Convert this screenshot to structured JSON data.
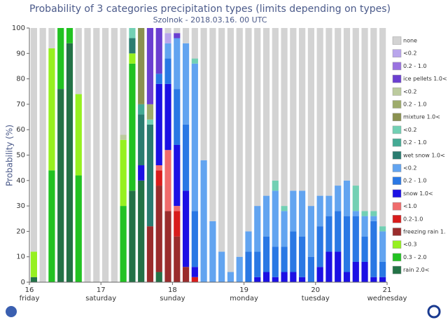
{
  "chart_data": {
    "type": "stacked_bar",
    "title": "Probability of 3 categories precipitation types (limits depending on types)",
    "subtitle": "Szolnok - 2018.03.16. 00 UTC",
    "y_label": "Probability (%)",
    "ylim": [
      0,
      100
    ],
    "yticks": [
      0,
      10,
      20,
      30,
      40,
      50,
      60,
      70,
      80,
      90,
      100
    ],
    "xlim": [
      16,
      21
    ],
    "xticks": [
      16,
      17,
      18,
      19,
      20,
      21
    ],
    "x_tick_weekdays": [
      "friday",
      "saturday",
      "sunday",
      "monday",
      "tuesday",
      "wednesday"
    ],
    "x": [
      16.0625,
      16.1875,
      16.3125,
      16.4375,
      16.5625,
      16.6875,
      16.8125,
      16.9375,
      17.0625,
      17.1875,
      17.3125,
      17.4375,
      17.5625,
      17.6875,
      17.8125,
      17.9375,
      18.0625,
      18.1875,
      18.3125,
      18.4375,
      18.5625,
      18.6875,
      18.8125,
      18.9375,
      19.0625,
      19.1875,
      19.3125,
      19.4375,
      19.5625,
      19.6875,
      19.8125,
      19.9375,
      20.0625,
      20.1875,
      20.3125,
      20.4375,
      20.5625,
      20.6875,
      20.8125,
      20.9375
    ],
    "series": [
      {
        "name": "none",
        "color": "#d3d3d3",
        "values": [
          88,
          100,
          8,
          0,
          0,
          26,
          100,
          100,
          100,
          100,
          42,
          0,
          0,
          0,
          0,
          2,
          2,
          6,
          12,
          52,
          76,
          88,
          96,
          90,
          80,
          70,
          66,
          60,
          70,
          64,
          64,
          70,
          66,
          66,
          62,
          60,
          62,
          72,
          72,
          78
        ]
      },
      {
        "name": "<0.2",
        "color": "#b9a6ec",
        "values": [
          0,
          0,
          0,
          0,
          0,
          0,
          0,
          0,
          0,
          0,
          0,
          0,
          0,
          0,
          0,
          4,
          0,
          0,
          0,
          0,
          0,
          0,
          0,
          0,
          0,
          0,
          0,
          0,
          0,
          0,
          0,
          0,
          0,
          0,
          0,
          0,
          0,
          0,
          0,
          0
        ]
      },
      {
        "name": "0.2 - 1.0",
        "color": "#9a72e0",
        "values": [
          0,
          0,
          0,
          0,
          0,
          0,
          0,
          0,
          0,
          0,
          0,
          0,
          0,
          0,
          0,
          0,
          0,
          0,
          0,
          0,
          0,
          0,
          0,
          0,
          0,
          0,
          0,
          0,
          0,
          0,
          0,
          0,
          0,
          0,
          0,
          0,
          0,
          0,
          0,
          0
        ]
      },
      {
        "name": "ice pellets 1.0<",
        "color": "#6b3fd0",
        "values": [
          0,
          0,
          0,
          0,
          0,
          0,
          0,
          0,
          0,
          0,
          0,
          0,
          0,
          30,
          18,
          0,
          2,
          0,
          0,
          0,
          0,
          0,
          0,
          0,
          0,
          0,
          0,
          0,
          0,
          0,
          0,
          0,
          0,
          0,
          0,
          0,
          0,
          0,
          0,
          0
        ]
      },
      {
        "name": "<0.2",
        "color": "#bccb9e",
        "values": [
          0,
          0,
          0,
          0,
          0,
          0,
          0,
          0,
          0,
          0,
          2,
          0,
          0,
          0,
          0,
          0,
          0,
          0,
          0,
          0,
          0,
          0,
          0,
          0,
          0,
          0,
          0,
          0,
          0,
          0,
          0,
          0,
          0,
          0,
          0,
          0,
          0,
          0,
          0,
          0
        ]
      },
      {
        "name": "0.2 - 1.0",
        "color": "#9eac6c",
        "values": [
          0,
          0,
          0,
          0,
          0,
          0,
          0,
          0,
          0,
          0,
          0,
          0,
          0,
          6,
          0,
          0,
          0,
          0,
          0,
          0,
          0,
          0,
          0,
          0,
          0,
          0,
          0,
          0,
          0,
          0,
          0,
          0,
          0,
          0,
          0,
          0,
          0,
          0,
          0,
          0
        ]
      },
      {
        "name": "mixture 1.0<",
        "color": "#8a9150",
        "values": [
          0,
          0,
          0,
          0,
          0,
          0,
          0,
          0,
          0,
          0,
          0,
          0,
          30,
          0,
          0,
          0,
          0,
          0,
          0,
          0,
          0,
          0,
          0,
          0,
          0,
          0,
          0,
          0,
          0,
          0,
          0,
          0,
          0,
          0,
          0,
          0,
          0,
          0,
          0,
          0
        ]
      },
      {
        "name": "<0.2",
        "color": "#72d0b4",
        "values": [
          0,
          0,
          0,
          0,
          0,
          0,
          0,
          0,
          0,
          0,
          0,
          4,
          0,
          2,
          0,
          0,
          0,
          0,
          2,
          0,
          0,
          0,
          0,
          0,
          0,
          0,
          0,
          4,
          2,
          0,
          0,
          0,
          0,
          0,
          0,
          0,
          10,
          2,
          2,
          2
        ]
      },
      {
        "name": "0.2 - 1.0",
        "color": "#44aa94",
        "values": [
          0,
          0,
          0,
          0,
          0,
          0,
          0,
          0,
          0,
          0,
          0,
          0,
          4,
          0,
          0,
          0,
          0,
          0,
          0,
          0,
          0,
          0,
          0,
          0,
          0,
          0,
          0,
          0,
          0,
          0,
          0,
          0,
          0,
          0,
          0,
          0,
          0,
          0,
          0,
          0
        ]
      },
      {
        "name": "wet snow 1.0<",
        "color": "#2a7c70",
        "values": [
          0,
          0,
          0,
          0,
          0,
          0,
          0,
          0,
          0,
          0,
          0,
          6,
          20,
          40,
          0,
          0,
          0,
          0,
          0,
          0,
          0,
          0,
          0,
          0,
          0,
          0,
          0,
          0,
          0,
          0,
          0,
          0,
          0,
          0,
          0,
          0,
          0,
          0,
          0,
          0
        ]
      },
      {
        "name": "<0.2",
        "color": "#62a4f0",
        "values": [
          0,
          0,
          0,
          0,
          0,
          0,
          0,
          0,
          0,
          0,
          0,
          0,
          0,
          0,
          0,
          6,
          20,
          32,
          58,
          48,
          24,
          12,
          4,
          10,
          8,
          18,
          16,
          22,
          14,
          16,
          18,
          20,
          12,
          8,
          10,
          14,
          2,
          8,
          2,
          12
        ]
      },
      {
        "name": "0.2 - 1.0",
        "color": "#2a78e4",
        "values": [
          0,
          0,
          0,
          0,
          0,
          0,
          0,
          0,
          0,
          0,
          0,
          0,
          0,
          0,
          4,
          10,
          22,
          26,
          22,
          0,
          0,
          0,
          0,
          0,
          12,
          10,
          14,
          12,
          10,
          16,
          16,
          10,
          16,
          14,
          16,
          22,
          18,
          10,
          22,
          6
        ]
      },
      {
        "name": "snow 1.0<",
        "color": "#1c10e4",
        "values": [
          0,
          0,
          0,
          0,
          0,
          0,
          0,
          0,
          0,
          0,
          0,
          0,
          6,
          0,
          32,
          26,
          24,
          30,
          4,
          0,
          0,
          0,
          0,
          0,
          0,
          2,
          4,
          2,
          4,
          4,
          2,
          0,
          6,
          12,
          12,
          4,
          8,
          8,
          2,
          2
        ]
      },
      {
        "name": "<1.0",
        "color": "#f06c6c",
        "values": [
          0,
          0,
          0,
          0,
          0,
          0,
          0,
          0,
          0,
          0,
          0,
          0,
          0,
          0,
          2,
          24,
          2,
          0,
          0,
          0,
          0,
          0,
          0,
          0,
          0,
          0,
          0,
          0,
          0,
          0,
          0,
          0,
          0,
          0,
          0,
          0,
          0,
          0,
          0,
          0
        ]
      },
      {
        "name": "0.2-1.0",
        "color": "#d81c1c",
        "values": [
          0,
          0,
          0,
          0,
          0,
          0,
          0,
          0,
          0,
          0,
          0,
          0,
          0,
          0,
          6,
          0,
          10,
          0,
          2,
          0,
          0,
          0,
          0,
          0,
          0,
          0,
          0,
          0,
          0,
          0,
          0,
          0,
          0,
          0,
          0,
          0,
          0,
          0,
          0,
          0
        ]
      },
      {
        "name": "freezing rain 1.",
        "color": "#9a2c2c",
        "values": [
          0,
          0,
          0,
          0,
          0,
          0,
          0,
          0,
          0,
          0,
          0,
          0,
          0,
          22,
          34,
          28,
          18,
          6,
          0,
          0,
          0,
          0,
          0,
          0,
          0,
          0,
          0,
          0,
          0,
          0,
          0,
          0,
          0,
          0,
          0,
          0,
          0,
          0,
          0,
          0
        ]
      },
      {
        "name": "<0.3",
        "color": "#96f020",
        "values": [
          10,
          0,
          48,
          0,
          0,
          32,
          0,
          0,
          0,
          0,
          26,
          4,
          0,
          0,
          0,
          0,
          0,
          0,
          0,
          0,
          0,
          0,
          0,
          0,
          0,
          0,
          0,
          0,
          0,
          0,
          0,
          0,
          0,
          0,
          0,
          0,
          0,
          0,
          0,
          0
        ]
      },
      {
        "name": "0.3 - 2.0",
        "color": "#22c222",
        "values": [
          0,
          0,
          44,
          24,
          6,
          42,
          0,
          0,
          0,
          0,
          30,
          50,
          0,
          0,
          0,
          0,
          0,
          0,
          0,
          0,
          0,
          0,
          0,
          0,
          0,
          0,
          0,
          0,
          0,
          0,
          0,
          0,
          0,
          0,
          0,
          0,
          0,
          0,
          0,
          0
        ]
      },
      {
        "name": "rain 2.0<",
        "color": "#237246",
        "values": [
          2,
          0,
          0,
          76,
          94,
          0,
          0,
          0,
          0,
          0,
          0,
          36,
          40,
          0,
          4,
          0,
          0,
          0,
          0,
          0,
          0,
          0,
          0,
          0,
          0,
          0,
          0,
          0,
          0,
          0,
          0,
          0,
          0,
          0,
          0,
          0,
          0,
          0,
          0,
          0
        ]
      }
    ]
  }
}
